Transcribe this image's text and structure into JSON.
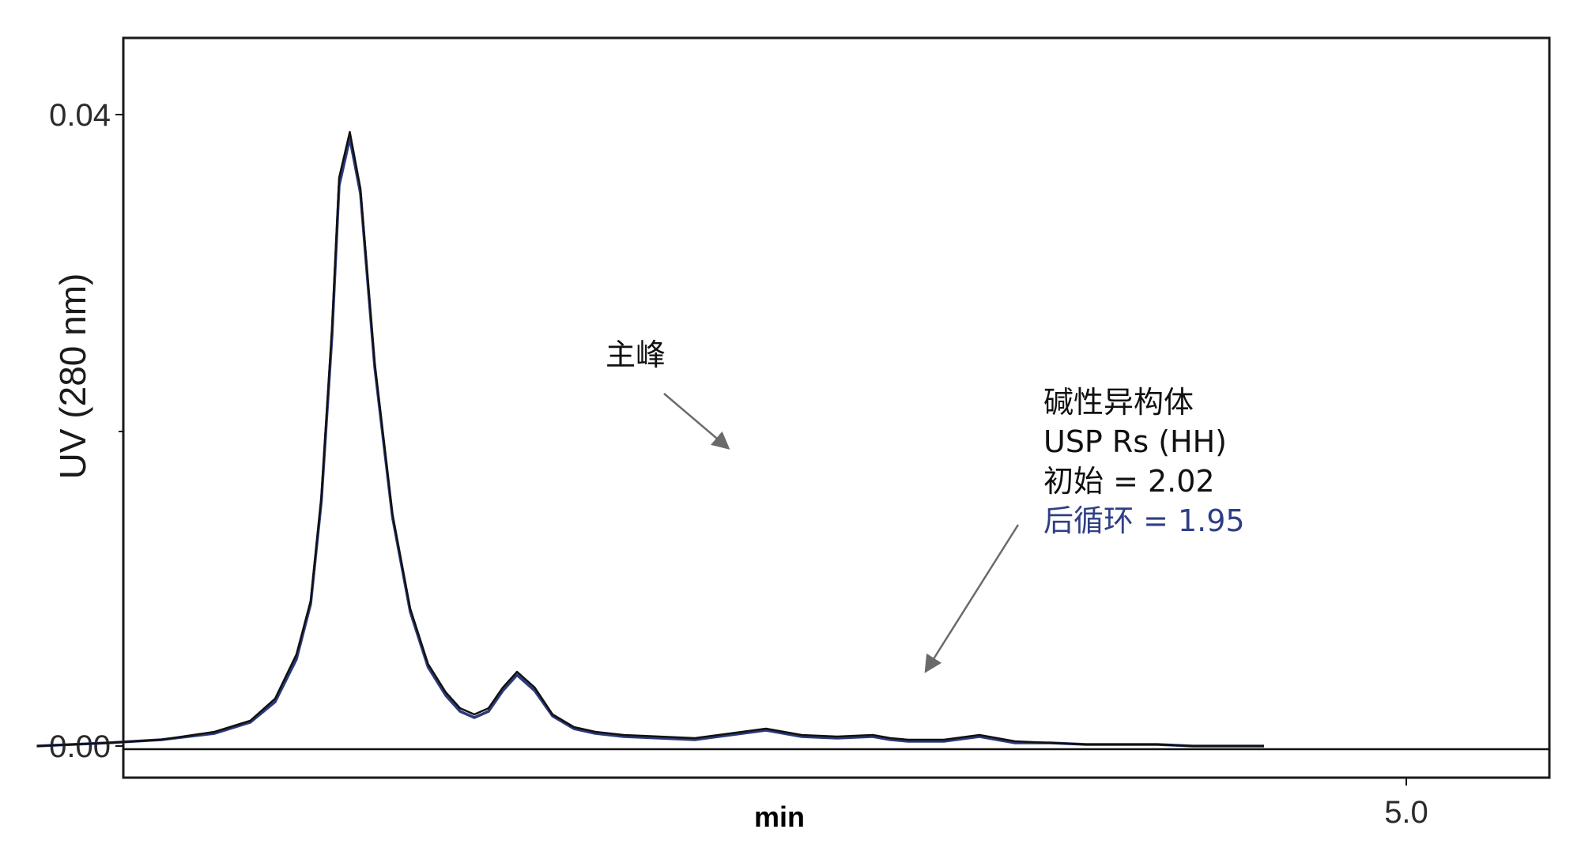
{
  "chart_data": {
    "type": "line",
    "title": "",
    "xlabel": "min",
    "ylabel": "UV (280 nm)",
    "x_tick_labels": [
      "5.0"
    ],
    "y_tick_labels": [
      "0.04",
      "0.00"
    ],
    "ylim": [
      -0.0018,
      0.045
    ],
    "grid": false,
    "series": [
      {
        "color": "#2b3a7a",
        "x": [
          1.15,
          1.35,
          1.5,
          1.65,
          1.75,
          1.82,
          1.88,
          1.92,
          1.95,
          1.98,
          2.0,
          2.03,
          2.06,
          2.1,
          2.15,
          2.2,
          2.25,
          2.3,
          2.34,
          2.38,
          2.42,
          2.46,
          2.5,
          2.55,
          2.6,
          2.66,
          2.72,
          2.8,
          2.9,
          3.0,
          3.1,
          3.2,
          3.3,
          3.4,
          3.5,
          3.55,
          3.6,
          3.7,
          3.8,
          3.85,
          3.9,
          4.0,
          4.1,
          4.2,
          4.3,
          4.4,
          4.5,
          4.6
        ],
        "y": [
          0.0,
          0.0002,
          0.0004,
          0.0008,
          0.0015,
          0.0028,
          0.0055,
          0.009,
          0.0155,
          0.026,
          0.0355,
          0.0385,
          0.035,
          0.024,
          0.0145,
          0.0085,
          0.005,
          0.0032,
          0.0022,
          0.0018,
          0.0022,
          0.0035,
          0.0045,
          0.0035,
          0.0019,
          0.0011,
          0.0008,
          0.0006,
          0.0005,
          0.0004,
          0.0007,
          0.001,
          0.0006,
          0.0005,
          0.0006,
          0.0004,
          0.0003,
          0.0003,
          0.0006,
          0.0004,
          0.0002,
          0.0002,
          0.0001,
          0.0001,
          0.0001,
          0.0,
          0.0,
          0.0
        ]
      },
      {
        "color": "#111111",
        "x": [
          1.15,
          1.35,
          1.5,
          1.65,
          1.75,
          1.82,
          1.88,
          1.92,
          1.95,
          1.98,
          2.0,
          2.03,
          2.06,
          2.1,
          2.15,
          2.2,
          2.25,
          2.3,
          2.34,
          2.38,
          2.42,
          2.46,
          2.5,
          2.55,
          2.6,
          2.66,
          2.72,
          2.8,
          2.9,
          3.0,
          3.1,
          3.2,
          3.3,
          3.4,
          3.5,
          3.55,
          3.6,
          3.7,
          3.8,
          3.85,
          3.9,
          4.0,
          4.1,
          4.2,
          4.3,
          4.4,
          4.5,
          4.6
        ],
        "y": [
          0.0,
          0.0002,
          0.0004,
          0.0009,
          0.0016,
          0.003,
          0.0058,
          0.0092,
          0.0158,
          0.0265,
          0.036,
          0.0389,
          0.0353,
          0.0243,
          0.0147,
          0.0087,
          0.0052,
          0.0034,
          0.0024,
          0.002,
          0.0024,
          0.0037,
          0.0047,
          0.0037,
          0.002,
          0.0012,
          0.0009,
          0.0007,
          0.0006,
          0.0005,
          0.0008,
          0.0011,
          0.0007,
          0.0006,
          0.0007,
          0.0005,
          0.0004,
          0.0004,
          0.0007,
          0.0005,
          0.0003,
          0.0002,
          0.0001,
          0.0001,
          0.0001,
          0.0,
          0.0,
          0.0
        ]
      }
    ],
    "annotations": [
      {
        "text": "主峰",
        "color": "#111111"
      },
      {
        "lines": [
          "碱性异构体",
          "USP Rs (HH)",
          "初始 = 2.02",
          "后循环 = 1.95"
        ],
        "colors": [
          "#111111",
          "#111111",
          "#111111",
          "#2f3f86"
        ]
      }
    ]
  }
}
